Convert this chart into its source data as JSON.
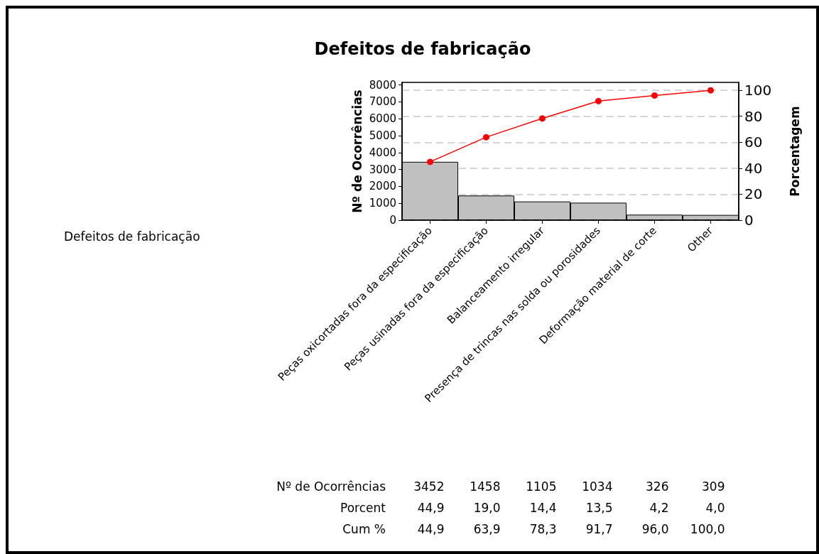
{
  "chart_data": {
    "type": "bar",
    "title": "Defeitos de fabricação",
    "ylabel": "Nº de Ocorrências",
    "y2label": "Porcentagem",
    "categories": [
      "Peças oxicortadas fora da especificação",
      "Peças usinadas fora da especificação",
      "Balanceamento irregular",
      "Presença de trincas nas solda ou porosidades",
      "Deformação material de corte",
      "Other"
    ],
    "series": [
      {
        "color": "#c0c0c0",
        "values": [
          3452,
          1458,
          1105,
          1034,
          326,
          309
        ],
        "value_labels": [
          "3452",
          "1458",
          "1105",
          "1034",
          "326",
          "309"
        ]
      },
      {
        "type": "line",
        "axis": "y2",
        "color": "#ff0000",
        "values": [
          44.9,
          63.9,
          78.3,
          91.7,
          96.0,
          100.0
        ],
        "value_labels": [
          "44,9",
          "63,9",
          "78,3",
          "91,7",
          "96,0",
          "100,0"
        ]
      }
    ],
    "annotations": [
      "Defeitos de fabricação",
      "Nº de Ocorrências",
      "Porcent",
      "Cum %",
      "44,9",
      "19,0",
      "14,4",
      "13,5",
      "4,2",
      "4,0"
    ],
    "ylim": [
      0,
      8150
    ],
    "yticks": [
      0,
      1000,
      2000,
      3000,
      4000,
      5000,
      6000,
      7000,
      8000
    ],
    "y2lim": [
      0,
      106.1
    ],
    "y2ticks": [
      0,
      20,
      40,
      60,
      80,
      100
    ],
    "grid": "y2",
    "marker": "circle",
    "line_style": "solid"
  }
}
